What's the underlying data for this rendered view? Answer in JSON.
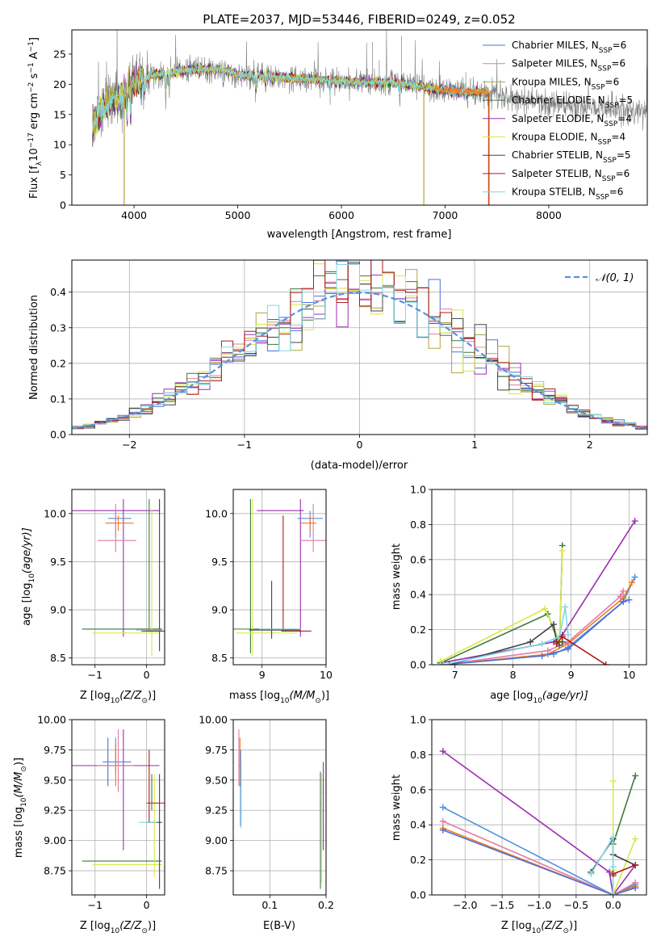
{
  "colors": {
    "Chabrier MILES": "#4a72d8",
    "Salpeter MILES": "#e27aa6",
    "Kroupa MILES": "#b0a53a",
    "Chabrier ELODIE": "#3d7a3d",
    "Salpeter ELODIE": "#9b2fb0",
    "Kroupa ELODIE": "#d8e84a",
    "Chabrier STELIB": "#444444",
    "Salpeter STELIB": "#b01a1a",
    "Kroupa STELIB": "#7fd8e6",
    "extra_orange": "#f07a1e",
    "extra_blue": "#4f92e0",
    "normal_curve": "#5b8fe0",
    "obs_spectrum": "#808080"
  },
  "chart_data": [
    {
      "id": "spectrum",
      "type": "line",
      "title": "PLATE=2037, MJD=53446, FIBERID=0249, z=0.052",
      "xlabel": "wavelength [Angstrom, rest frame]",
      "ylabel": "Flux [f",
      "ylabel_sub": "λ",
      "ylabel_mid": "10",
      "ylabel_sup": "−17",
      "ylabel_end": " erg cm",
      "ylabel_sup2": "−2",
      "ylabel_end2": " s",
      "ylabel_sup3": "−1",
      "ylabel_end3": " A",
      "ylabel_sup4": "−1",
      "ylabel_close": "]",
      "xlim": [
        3400,
        8950
      ],
      "ylim": [
        0,
        29
      ],
      "xticks": [
        4000,
        5000,
        6000,
        7000,
        8000
      ],
      "yticks": [
        0,
        5,
        10,
        15,
        20,
        25
      ],
      "legend_position": "top-right",
      "legend": [
        {
          "label": "Chabrier MILES, N",
          "sub": "SSP",
          "eq": "=6",
          "key": "Chabrier MILES"
        },
        {
          "label": "Salpeter MILES, N",
          "sub": "SSP",
          "eq": "=6",
          "key": "Salpeter MILES"
        },
        {
          "label": "Kroupa MILES, N",
          "sub": "SSP",
          "eq": "=6",
          "key": "Kroupa MILES"
        },
        {
          "label": "Chabrier ELODIE, N",
          "sub": "SSP",
          "eq": "=5",
          "key": "Chabrier ELODIE"
        },
        {
          "label": "Salpeter ELODIE, N",
          "sub": "SSP",
          "eq": "=4",
          "key": "Salpeter ELODIE"
        },
        {
          "label": "Kroupa ELODIE, N",
          "sub": "SSP",
          "eq": "=4",
          "key": "Kroupa ELODIE"
        },
        {
          "label": "Chabrier STELIB, N",
          "sub": "SSP",
          "eq": "=5",
          "key": "Chabrier STELIB"
        },
        {
          "label": "Salpeter STELIB, N",
          "sub": "SSP",
          "eq": "=6",
          "key": "Salpeter STELIB"
        },
        {
          "label": "Kroupa STELIB, N",
          "sub": "SSP",
          "eq": "=6",
          "key": "Kroupa STELIB"
        }
      ],
      "continuum": [
        [
          3600,
          13
        ],
        [
          3650,
          14.5
        ],
        [
          3700,
          16.5
        ],
        [
          3800,
          17.5
        ],
        [
          3900,
          18.5
        ],
        [
          4000,
          20.5
        ],
        [
          4100,
          21
        ],
        [
          4200,
          21.5
        ],
        [
          4400,
          22
        ],
        [
          4600,
          22.5
        ],
        [
          4860,
          22.5
        ],
        [
          5000,
          21.5
        ],
        [
          5200,
          21.5
        ],
        [
          5500,
          21
        ],
        [
          5800,
          20.8
        ],
        [
          6000,
          20.5
        ],
        [
          6200,
          20.3
        ],
        [
          6500,
          20.3
        ],
        [
          6700,
          19.8
        ],
        [
          7000,
          19
        ],
        [
          7200,
          18.7
        ],
        [
          7400,
          18.6
        ],
        [
          7600,
          17.8
        ],
        [
          8000,
          16.8
        ],
        [
          8500,
          16
        ],
        [
          8900,
          15.5
        ]
      ],
      "model_end": 7420,
      "obs_start": 3600,
      "obs_end": 8950
    },
    {
      "id": "residuals",
      "type": "histogram",
      "xlabel": "(data-model)/error",
      "ylabel": "Normed distribution",
      "xlim": [
        -2.5,
        2.5
      ],
      "ylim": [
        0,
        0.49
      ],
      "xticks": [
        -2,
        -1,
        0,
        1,
        2
      ],
      "yticks": [
        0.0,
        0.1,
        0.2,
        0.3,
        0.4
      ],
      "grid": true,
      "legend_position": "top-right",
      "legend": [
        {
          "label": "𝒩(0, 1)"
        }
      ],
      "bin_width": 0.1
    },
    {
      "id": "age_vs_Z",
      "type": "errorbar",
      "xlabel": "Z [log",
      "xlabel_sub": "10",
      "xlabel_rest": "(Z/Z",
      "xlabel_sub2": "⊙",
      "xlabel_end": ")]",
      "ylabel": "age  [log",
      "ylabel_sub": "10",
      "ylabel_rest": "(age/yr)]",
      "xlim": [
        -1.45,
        0.35
      ],
      "ylim": [
        8.43,
        10.25
      ],
      "xticks": [
        -1,
        0
      ],
      "yticks": [
        8.5,
        9.0,
        9.5,
        10.0
      ],
      "grid": true
    },
    {
      "id": "age_vs_mass",
      "type": "errorbar",
      "xlabel": "mass [log",
      "xlabel_sub": "10",
      "xlabel_rest": "(M/M",
      "xlabel_sub2": "⊙",
      "xlabel_end": ")]",
      "xlim": [
        8.55,
        10.0
      ],
      "ylim": [
        8.43,
        10.25
      ],
      "xticks": [
        9,
        10
      ],
      "yticks": [
        8.5,
        9.0,
        9.5,
        10.0
      ],
      "grid": true
    },
    {
      "id": "weight_vs_age",
      "type": "line",
      "xlabel": "age  [log",
      "xlabel_sub": "10",
      "xlabel_rest": "(age/yr)]",
      "ylabel": "mass weight",
      "xlim": [
        6.6,
        10.3
      ],
      "ylim": [
        0,
        1.0
      ],
      "xticks": [
        7,
        8,
        9,
        10
      ],
      "yticks": [
        0.0,
        0.2,
        0.4,
        0.6,
        0.8,
        1.0
      ],
      "grid": true
    },
    {
      "id": "mass_vs_Z",
      "type": "errorbar",
      "xlabel": "Z [log",
      "xlabel_sub": "10",
      "xlabel_rest": "(Z/Z",
      "xlabel_sub2": "⊙",
      "xlabel_end": ")]",
      "ylabel": "mass [log",
      "ylabel_sub": "10",
      "ylabel_rest": "(M/M",
      "ylabel_sub2": "⊙",
      "ylabel_end": ")]",
      "xlim": [
        -1.45,
        0.35
      ],
      "ylim": [
        8.55,
        10.0
      ],
      "xticks": [
        -1,
        0
      ],
      "yticks": [
        8.75,
        9.0,
        9.25,
        9.5,
        9.75,
        10.0
      ],
      "grid": true
    },
    {
      "id": "mass_vs_ebv",
      "type": "errorbar",
      "xlabel": "E(B-V)",
      "xlim": [
        0.035,
        0.2
      ],
      "ylim": [
        8.55,
        10.0
      ],
      "xticks": [
        0.1,
        0.2
      ],
      "yticks": [
        8.75,
        9.0,
        9.25,
        9.5,
        9.75,
        10.0
      ],
      "grid": true
    },
    {
      "id": "weight_vs_Z",
      "type": "line",
      "xlabel": "Z [log",
      "xlabel_sub": "10",
      "xlabel_rest": "(Z/Z",
      "xlabel_sub2": "⊙",
      "xlabel_end": ")]",
      "ylabel": "mass weight",
      "xlim": [
        -2.45,
        0.45
      ],
      "ylim": [
        0,
        1.0
      ],
      "xticks": [
        -2.0,
        -1.5,
        -1.0,
        -0.5,
        0.0
      ],
      "yticks": [
        0.0,
        0.2,
        0.4,
        0.6,
        0.8,
        1.0
      ],
      "grid": true
    }
  ]
}
